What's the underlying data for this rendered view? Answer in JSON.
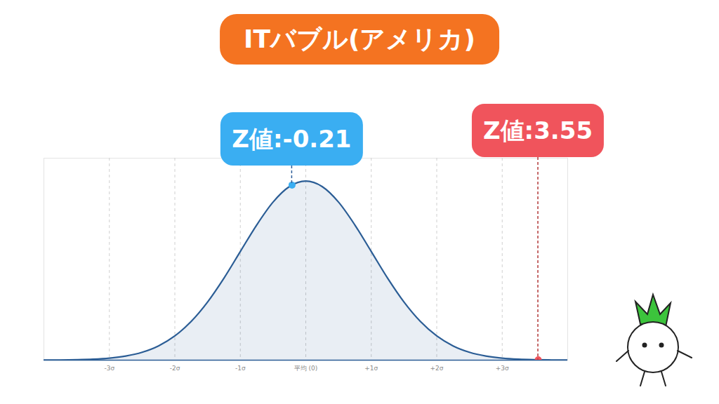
{
  "chart_data": {
    "type": "area",
    "title": "ITバブル(アメリカ)",
    "x": [
      -4,
      -3.75,
      -3.5,
      -3.25,
      -3,
      -2.75,
      -2.5,
      -2.25,
      -2,
      -1.75,
      -1.5,
      -1.25,
      -1,
      -0.75,
      -0.5,
      -0.25,
      0,
      0.25,
      0.5,
      0.75,
      1,
      1.25,
      1.5,
      1.75,
      2,
      2.25,
      2.5,
      2.75,
      3,
      3.25,
      3.5,
      3.75,
      4
    ],
    "values": [
      0.0001,
      0.0004,
      0.0009,
      0.002,
      0.0044,
      0.0091,
      0.0175,
      0.0317,
      0.054,
      0.0863,
      0.1295,
      0.1826,
      0.242,
      0.3011,
      0.3521,
      0.3867,
      0.3989,
      0.3867,
      0.3521,
      0.3011,
      0.242,
      0.1826,
      0.1295,
      0.0863,
      0.054,
      0.0317,
      0.0175,
      0.0091,
      0.0044,
      0.002,
      0.0009,
      0.0004,
      0.0001
    ],
    "color": "#2b5d95",
    "xlim": [
      -4,
      4
    ],
    "ylim": [
      0,
      0.45
    ],
    "xticks": [
      {
        "value": -3,
        "label": "-3σ"
      },
      {
        "value": -2,
        "label": "-2σ"
      },
      {
        "value": -1,
        "label": "-1σ"
      },
      {
        "value": 0,
        "label": "平均 (0)"
      },
      {
        "value": 1,
        "label": "+1σ"
      },
      {
        "value": 2,
        "label": "+2σ"
      },
      {
        "value": 3,
        "label": "+3σ"
      }
    ],
    "grid": true,
    "tick_labels": "x",
    "annotations": [
      {
        "text": "Z値:-0.21",
        "x": -0.21,
        "y": 0.39,
        "color": "#3aaef2"
      },
      {
        "text": "Z値:3.55",
        "x": 3.55,
        "y": 0.0007,
        "color": "#f0545c"
      }
    ]
  }
}
